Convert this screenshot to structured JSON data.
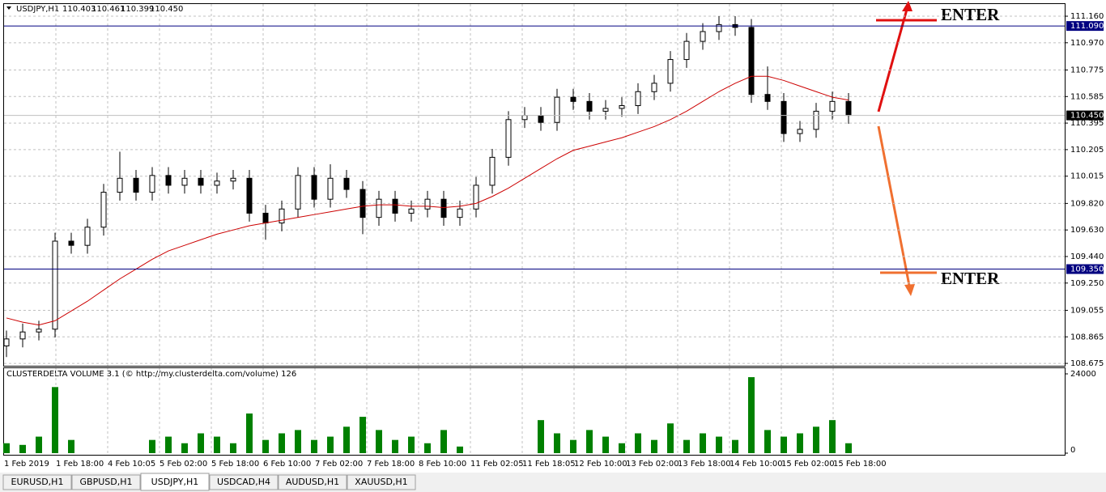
{
  "chart_data": [
    {
      "type": "candlestick",
      "header": {
        "symbol": "USDJPY,H1",
        "ohlc": [
          110.403,
          110.461,
          110.399,
          {
            "value": 110.45,
            "label": "110.450"
          }
        ]
      },
      "time_labels": [
        "1 Feb 2019",
        "1 Feb 18:00",
        "4 Feb 10:05",
        "5 Feb 02:00",
        "5 Feb 18:00",
        "6 Feb 10:00",
        "7 Feb 02:00",
        "7 Feb 18:00",
        "8 Feb 10:00",
        "11 Feb 02:05",
        "11 Feb 18:05",
        "12 Feb 10:00",
        "13 Feb 02:00",
        "13 Feb 18:00",
        "14 Feb 10:00",
        "15 Feb 02:00",
        "15 Feb 18:00"
      ],
      "open": [
        108.8,
        108.85,
        108.9,
        108.92,
        109.55,
        109.52,
        109.65,
        109.9,
        110.0,
        109.9,
        110.02,
        109.95,
        110.0,
        109.95,
        109.98,
        110.0,
        109.75,
        109.68,
        109.78,
        110.02,
        109.85,
        110.0,
        109.92,
        109.72,
        109.85,
        109.75,
        109.78,
        109.85,
        109.72,
        109.78,
        109.95,
        110.15,
        110.42,
        110.45,
        110.4,
        110.58,
        110.55,
        110.48,
        110.5,
        110.52,
        110.62,
        110.68,
        110.85,
        110.98,
        111.05,
        111.1,
        111.08,
        110.6,
        110.55,
        110.32,
        110.35,
        110.48,
        110.55
      ],
      "high": [
        108.91,
        108.96,
        108.98,
        109.61,
        109.61,
        109.71,
        109.96,
        110.19,
        110.06,
        110.08,
        110.08,
        110.06,
        110.06,
        110.04,
        110.06,
        110.06,
        109.81,
        109.84,
        110.08,
        110.08,
        110.1,
        110.06,
        109.98,
        109.91,
        109.91,
        109.84,
        109.91,
        109.91,
        109.84,
        110.01,
        110.21,
        110.48,
        110.51,
        110.51,
        110.64,
        110.64,
        110.61,
        110.56,
        110.58,
        110.68,
        110.74,
        110.91,
        111.04,
        111.11,
        111.16,
        111.16,
        111.14,
        110.8,
        110.61,
        110.41,
        110.54,
        110.62,
        110.61
      ],
      "low": [
        108.72,
        108.79,
        108.84,
        108.86,
        109.46,
        109.46,
        109.59,
        109.84,
        109.84,
        109.84,
        109.89,
        109.89,
        109.89,
        109.89,
        109.92,
        109.69,
        109.56,
        109.62,
        109.72,
        109.79,
        109.79,
        109.86,
        109.6,
        109.66,
        109.69,
        109.69,
        109.72,
        109.66,
        109.66,
        109.72,
        109.89,
        110.09,
        110.36,
        110.34,
        110.34,
        110.49,
        110.42,
        110.42,
        110.44,
        110.46,
        110.56,
        110.62,
        110.79,
        110.92,
        110.99,
        111.02,
        110.54,
        110.49,
        110.26,
        110.26,
        110.29,
        110.42,
        110.39
      ],
      "close": [
        108.85,
        108.9,
        108.92,
        109.55,
        109.52,
        109.65,
        109.9,
        110.0,
        109.9,
        110.02,
        109.95,
        110.0,
        109.95,
        109.98,
        110.0,
        109.75,
        109.68,
        109.78,
        110.02,
        109.85,
        110.0,
        109.92,
        109.72,
        109.85,
        109.75,
        109.78,
        109.85,
        109.72,
        109.78,
        109.95,
        110.15,
        110.42,
        110.45,
        110.4,
        110.58,
        110.55,
        110.48,
        110.5,
        110.52,
        110.62,
        110.68,
        110.85,
        110.98,
        111.05,
        111.1,
        111.08,
        110.6,
        110.55,
        110.32,
        110.35,
        110.48,
        110.55,
        110.45
      ],
      "ma": {
        "color": "#cc0000",
        "values": [
          109.0,
          108.97,
          108.95,
          108.98,
          109.05,
          109.12,
          109.2,
          109.28,
          109.35,
          109.42,
          109.48,
          109.52,
          109.56,
          109.6,
          109.63,
          109.66,
          109.68,
          109.7,
          109.72,
          109.74,
          109.76,
          109.78,
          109.8,
          109.81,
          109.81,
          109.8,
          109.8,
          109.79,
          109.8,
          109.82,
          109.87,
          109.93,
          110.0,
          110.07,
          110.14,
          110.2,
          110.23,
          110.26,
          110.29,
          110.33,
          110.37,
          110.42,
          110.48,
          110.55,
          110.62,
          110.68,
          110.73,
          110.73,
          110.7,
          110.66,
          110.62,
          110.58,
          110.56
        ]
      },
      "ylim": [
        108.658,
        111.247
      ],
      "yticks": [
        {
          "value": 111.16,
          "label": "111.160"
        },
        {
          "value": 110.97,
          "label": "110.970"
        },
        110.775,
        110.585,
        110.395,
        110.205,
        110.015,
        {
          "value": 109.82,
          "label": "109.820"
        },
        {
          "value": 109.63,
          "label": "109.630"
        },
        {
          "value": 109.44,
          "label": "109.440"
        },
        {
          "value": 109.25,
          "label": "109.250"
        },
        109.055,
        108.865,
        108.675
      ],
      "levels": [
        {
          "value": 111.09,
          "label": "111.090"
        },
        {
          "value": 109.35,
          "label": "109.350"
        }
      ],
      "current_price": {
        "value": 110.45,
        "label": "110.450"
      },
      "annotations": [
        {
          "text": "ENTER",
          "color": "#e01010"
        },
        {
          "text": "ENTER",
          "color": "#f07030"
        }
      ],
      "grid": true
    },
    {
      "type": "bar",
      "title": "CLUSTERDELTA VOLUME 3.1 (© http://my.clusterdelta.com/volume) 126",
      "color": "#008000",
      "values": [
        3000,
        2500,
        5000,
        20000,
        4000,
        0,
        0,
        0,
        0,
        4000,
        5000,
        3000,
        6000,
        5000,
        3000,
        12000,
        4000,
        6000,
        7000,
        4000,
        5000,
        8000,
        11000,
        7000,
        4000,
        5000,
        3000,
        7000,
        2000,
        0,
        0,
        0,
        0,
        10000,
        6000,
        4000,
        7000,
        5000,
        3000,
        6000,
        4000,
        9000,
        4000,
        6000,
        5000,
        4000,
        23000,
        7000,
        5000,
        6000,
        8000,
        10000,
        3000
      ],
      "ylim": [
        0,
        24000
      ],
      "yticks": [
        0,
        24000
      ]
    }
  ],
  "tabs": [
    "EURUSD,H1",
    "GBPUSD,H1",
    "USDJPY,H1",
    "USDCAD,H4",
    "AUDUSD,H1",
    "XAUUSD,H1"
  ],
  "active_tab": 2
}
